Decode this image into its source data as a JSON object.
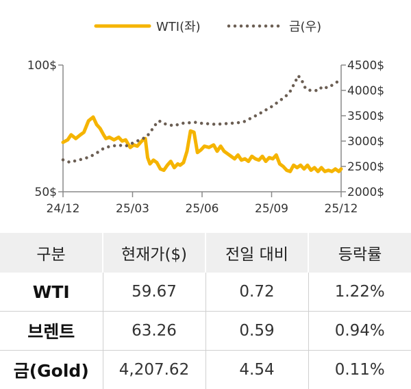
{
  "chart_data": {
    "type": "line",
    "legend": [
      {
        "name": "WTI(좌)",
        "color": "#f5b400",
        "style": "solid"
      },
      {
        "name": "금(우)",
        "color": "#6b5e53",
        "style": "dotted"
      }
    ],
    "legend_position": "top-center",
    "x_ticks": [
      "24/12",
      "25/03",
      "25/06",
      "25/09",
      "25/12"
    ],
    "y_left": {
      "min": 50,
      "max": 100,
      "ticks": [
        "100$",
        "50$"
      ],
      "tick_values": [
        100,
        50
      ]
    },
    "y_right": {
      "min": 2000,
      "max": 4500,
      "ticks": [
        "4500$",
        "4000$",
        "3500$",
        "3000$",
        "2500$",
        "2000$"
      ],
      "tick_values": [
        4500,
        4000,
        3500,
        3000,
        2500,
        2000
      ]
    },
    "grid": false,
    "series": [
      {
        "name": "WTI(좌)",
        "axis": "left",
        "color": "#f5b400",
        "x": [
          0,
          0.2,
          0.35,
          0.55,
          0.75,
          0.9,
          1.1,
          1.3,
          1.45,
          1.6,
          1.75,
          1.85,
          2.0,
          2.2,
          2.4,
          2.55,
          2.7,
          2.9,
          3.05,
          3.2,
          3.35,
          3.45,
          3.55,
          3.65,
          3.75,
          3.9,
          4.05,
          4.2,
          4.35,
          4.5,
          4.65,
          4.8,
          4.95,
          5.05,
          5.2,
          5.35,
          5.5,
          5.65,
          5.8,
          5.95,
          6.1,
          6.3,
          6.5,
          6.65,
          6.8,
          6.95,
          7.1,
          7.25,
          7.4,
          7.55,
          7.7,
          7.85,
          8.0,
          8.15,
          8.3,
          8.45,
          8.6,
          8.75,
          8.9,
          9.05,
          9.2,
          9.35,
          9.5,
          9.65,
          9.8,
          9.95,
          10.1,
          10.25,
          10.4,
          10.55,
          10.7,
          10.85,
          11.0,
          11.15,
          11.3,
          11.45,
          11.6,
          11.75,
          11.9,
          12.0
        ],
        "y": [
          69.5,
          70.5,
          72.5,
          71.0,
          72.5,
          73.5,
          78.0,
          79.5,
          76.5,
          75.0,
          72.5,
          71.0,
          71.5,
          70.5,
          71.5,
          70.0,
          70.5,
          67.5,
          68.5,
          68.0,
          69.5,
          70.5,
          71.0,
          63.5,
          61.0,
          62.5,
          61.5,
          59.0,
          58.5,
          60.5,
          62.0,
          59.5,
          61.0,
          60.5,
          61.5,
          66.0,
          74.0,
          73.5,
          65.5,
          66.5,
          68.0,
          67.5,
          68.5,
          66.0,
          68.0,
          66.0,
          65.0,
          64.0,
          63.0,
          64.5,
          62.5,
          63.0,
          62.0,
          64.0,
          63.0,
          62.5,
          64.0,
          62.0,
          63.5,
          63.0,
          64.5,
          61.0,
          60.0,
          58.5,
          58.0,
          60.5,
          59.5,
          60.5,
          59.0,
          60.5,
          58.5,
          59.5,
          58.0,
          59.5,
          58.0,
          58.5,
          58.0,
          59.0,
          58.0,
          59.0
        ]
      },
      {
        "name": "금(우)",
        "axis": "right",
        "color": "#6b5e53",
        "x": [
          0,
          0.3,
          0.6,
          0.9,
          1.2,
          1.5,
          1.8,
          2.1,
          2.4,
          2.7,
          3.0,
          3.3,
          3.6,
          3.8,
          4.0,
          4.15,
          4.3,
          4.5,
          4.8,
          5.1,
          5.4,
          5.7,
          6.0,
          6.3,
          6.6,
          6.9,
          7.2,
          7.5,
          7.8,
          8.1,
          8.4,
          8.7,
          9.0,
          9.3,
          9.6,
          9.8,
          10.0,
          10.15,
          10.3,
          10.45,
          10.6,
          10.8,
          11.0,
          11.2,
          11.4,
          11.6,
          11.8,
          12.0
        ],
        "y": [
          2630,
          2580,
          2620,
          2650,
          2700,
          2780,
          2870,
          2900,
          2920,
          2900,
          2960,
          3020,
          3080,
          3200,
          3330,
          3400,
          3350,
          3330,
          3300,
          3350,
          3360,
          3370,
          3350,
          3340,
          3330,
          3340,
          3350,
          3360,
          3380,
          3450,
          3520,
          3600,
          3680,
          3780,
          3880,
          3980,
          4150,
          4290,
          4200,
          4050,
          4000,
          4010,
          3990,
          4080,
          4050,
          4100,
          4160,
          4210
        ]
      }
    ]
  },
  "table": {
    "headers": [
      "구분",
      "현재가($)",
      "전일 대비",
      "등락률"
    ],
    "rows": [
      [
        "WTI",
        "59.67",
        "0.72",
        "1.22%"
      ],
      [
        "브렌트",
        "63.26",
        "0.59",
        "0.94%"
      ],
      [
        "금(Gold)",
        "4,207.62",
        "4.54",
        "0.11%"
      ]
    ]
  }
}
